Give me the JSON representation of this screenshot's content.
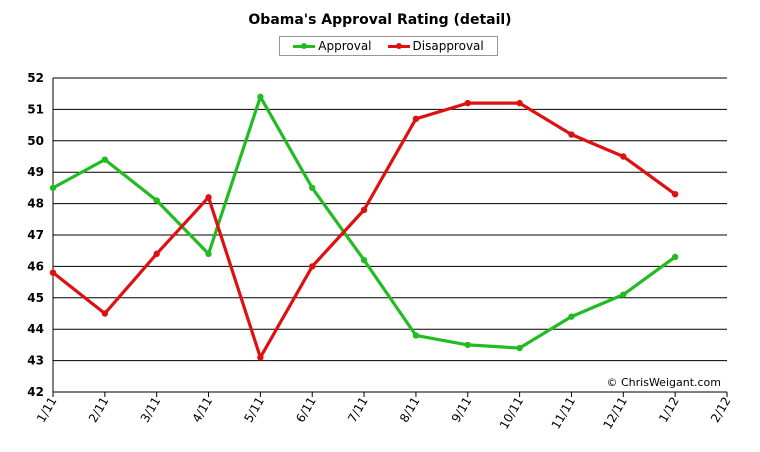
{
  "chart_data": {
    "type": "line",
    "title": "Obama's Approval Rating (detail)",
    "categories": [
      "1/11",
      "2/11",
      "3/11",
      "4/11",
      "5/11",
      "6/11",
      "7/11",
      "8/11",
      "9/11",
      "10/11",
      "11/11",
      "12/11",
      "1/12",
      "2/12"
    ],
    "series": [
      {
        "name": "Approval",
        "color": "#22bb22",
        "values": [
          48.5,
          49.4,
          48.1,
          46.4,
          51.4,
          48.5,
          46.2,
          43.8,
          43.5,
          43.4,
          44.4,
          45.1,
          46.3,
          null
        ]
      },
      {
        "name": "Disapproval",
        "color": "#dd1111",
        "values": [
          45.8,
          44.5,
          46.4,
          48.2,
          43.1,
          46.0,
          47.8,
          50.7,
          51.2,
          51.2,
          50.2,
          49.5,
          48.3,
          null
        ]
      }
    ],
    "ylim": [
      42,
      52
    ],
    "yticks": [
      42,
      43,
      44,
      45,
      46,
      47,
      48,
      49,
      50,
      51,
      52
    ],
    "grid": true,
    "legend_position": "top-center",
    "credit": "© ChrisWeigant.com"
  }
}
